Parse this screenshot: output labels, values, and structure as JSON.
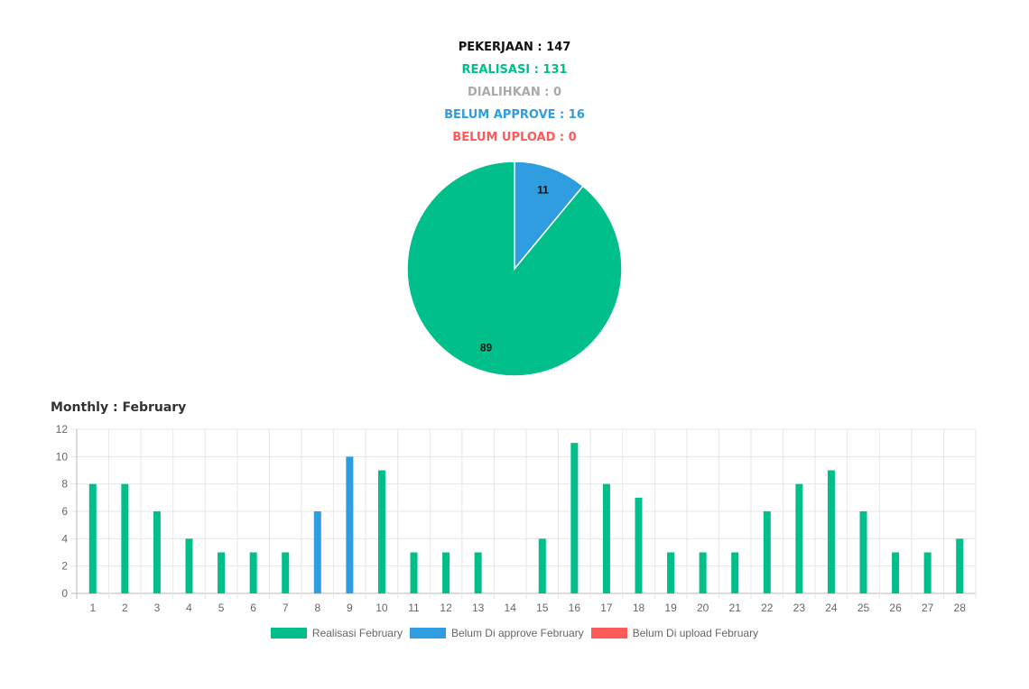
{
  "summary": {
    "pekerjaan": "PEKERJAAN : 147",
    "realisasi": "REALISASI : 131",
    "dialihkan": "DIALIHKAN : 0",
    "belum_approve": "BELUM APPROVE : 16",
    "belum_upload": "BELUM UPLOAD : 0"
  },
  "colors": {
    "pekerjaan": "#111111",
    "realisasi": "#00bf8a",
    "dialihkan": "#aaaaaa",
    "belum_approve": "#2f9de0",
    "belum_upload": "#ff5a5a"
  },
  "monthly_title": "Monthly : February",
  "chart_data": [
    {
      "type": "pie",
      "labels": [
        "89",
        "11"
      ],
      "values": [
        89,
        11
      ],
      "colors": [
        "#00bf8a",
        "#2f9de0"
      ]
    },
    {
      "type": "bar",
      "categories": [
        "1",
        "2",
        "3",
        "4",
        "5",
        "6",
        "7",
        "8",
        "9",
        "10",
        "11",
        "12",
        "13",
        "14",
        "15",
        "16",
        "17",
        "18",
        "19",
        "20",
        "21",
        "22",
        "23",
        "24",
        "25",
        "26",
        "27",
        "28"
      ],
      "series": [
        {
          "name": "Realisasi February",
          "color": "#00bf8a",
          "values": [
            8,
            8,
            6,
            4,
            3,
            3,
            3,
            0,
            0,
            9,
            3,
            3,
            3,
            0,
            4,
            11,
            8,
            7,
            3,
            3,
            3,
            6,
            8,
            9,
            6,
            3,
            3,
            4
          ]
        },
        {
          "name": "Belum Di approve February",
          "color": "#2f9de0",
          "values": [
            0,
            0,
            0,
            0,
            0,
            0,
            0,
            6,
            10,
            0,
            0,
            0,
            0,
            0,
            0,
            0,
            0,
            0,
            0,
            0,
            0,
            0,
            0,
            0,
            0,
            0,
            0,
            0
          ]
        },
        {
          "name": "Belum Di upload February",
          "color": "#ff5a5a",
          "values": [
            0,
            0,
            0,
            0,
            0,
            0,
            0,
            0,
            0,
            0,
            0,
            0,
            0,
            0,
            0,
            0,
            0,
            0,
            0,
            0,
            0,
            0,
            0,
            0,
            0,
            0,
            0,
            0
          ]
        }
      ],
      "ylim": [
        0,
        12
      ],
      "yticks": [
        0,
        2,
        4,
        6,
        8,
        10,
        12
      ],
      "grid": true,
      "legend": "bottom"
    }
  ]
}
